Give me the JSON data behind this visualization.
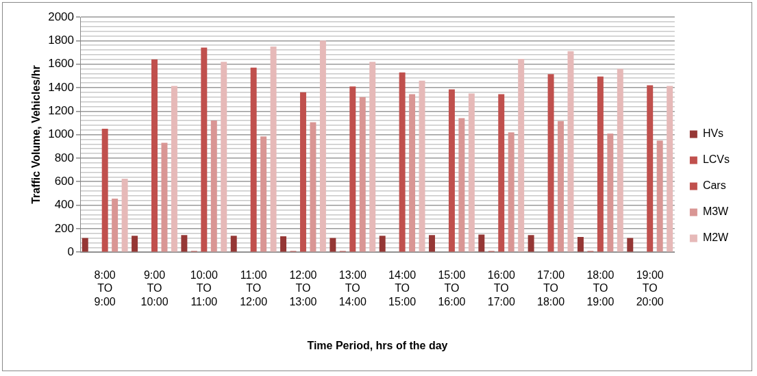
{
  "chart_data": {
    "type": "bar",
    "xlabel": "Time Period, hrs of the day",
    "ylabel": "Traffic Volume, Vehicles/hr",
    "categories": [
      "8:00 TO 9:00",
      "9:00 TO 10:00",
      "10:00 TO 11:00",
      "11:00 TO 12:00",
      "12:00 TO 13:00",
      "13:00 TO 14:00",
      "14:00 TO 15:00",
      "15:00 TO 16:00",
      "16:00 TO 17:00",
      "17:00 TO 18:00",
      "18:00 TO 19:00",
      "19:00 TO 20:00"
    ],
    "series": [
      {
        "name": "HVs",
        "color": "#953735",
        "values": [
          120,
          140,
          145,
          140,
          135,
          120,
          140,
          145,
          150,
          145,
          130,
          120
        ]
      },
      {
        "name": "LCVs",
        "color": "#c0504d",
        "values": [
          null,
          null,
          10,
          null,
          10,
          10,
          null,
          null,
          10,
          null,
          10,
          null
        ]
      },
      {
        "name": "Cars",
        "color": "#c0504d",
        "values": [
          1050,
          1640,
          1740,
          1570,
          1360,
          1410,
          1530,
          1385,
          1345,
          1515,
          1495,
          1420
        ]
      },
      {
        "name": "M3W",
        "color": "#d99694",
        "values": [
          455,
          930,
          1120,
          985,
          1105,
          1320,
          1345,
          1140,
          1020,
          1115,
          1010,
          950
        ]
      },
      {
        "name": "M2W",
        "color": "#e6b9b8",
        "values": [
          625,
          1415,
          1620,
          1750,
          1800,
          1620,
          1460,
          1350,
          1645,
          1710,
          1560,
          1415
        ]
      }
    ],
    "ylim": [
      0,
      2000
    ],
    "yticks": [
      0,
      {
        "value": 40,
        "label": null
      },
      {
        "value": 80,
        "label": null
      },
      {
        "value": 120,
        "label": null
      },
      {
        "value": 160,
        "label": null
      },
      200,
      {
        "value": 240,
        "label": null
      },
      {
        "value": 280,
        "label": null
      },
      {
        "value": 320,
        "label": null
      },
      {
        "value": 360,
        "label": null
      },
      400,
      {
        "value": 440,
        "label": null
      },
      {
        "value": 480,
        "label": null
      },
      {
        "value": 520,
        "label": null
      },
      {
        "value": 560,
        "label": null
      },
      600,
      {
        "value": 640,
        "label": null
      },
      {
        "value": 680,
        "label": null
      },
      {
        "value": 720,
        "label": null
      },
      {
        "value": 760,
        "label": null
      },
      800,
      {
        "value": 840,
        "label": null
      },
      {
        "value": 880,
        "label": null
      },
      {
        "value": 920,
        "label": null
      },
      {
        "value": 960,
        "label": null
      },
      1000,
      {
        "value": 1040,
        "label": null
      },
      {
        "value": 1080,
        "label": null
      },
      {
        "value": 1120,
        "label": null
      },
      {
        "value": 1160,
        "label": null
      },
      1200,
      {
        "value": 1240,
        "label": null
      },
      {
        "value": 1280,
        "label": null
      },
      {
        "value": 1320,
        "label": null
      },
      {
        "value": 1360,
        "label": null
      },
      1400,
      {
        "value": 1440,
        "label": null
      },
      {
        "value": 1480,
        "label": null
      },
      {
        "value": 1520,
        "label": null
      },
      {
        "value": 1560,
        "label": null
      },
      1600,
      {
        "value": 1640,
        "label": null
      },
      {
        "value": 1680,
        "label": null
      },
      {
        "value": 1720,
        "label": null
      },
      {
        "value": 1760,
        "label": null
      },
      1800,
      {
        "value": 1840,
        "label": null
      },
      {
        "value": 1880,
        "label": null
      },
      {
        "value": 1920,
        "label": null
      },
      {
        "value": 1960,
        "label": null
      },
      2000
    ],
    "grid": "y",
    "legend": "right"
  }
}
